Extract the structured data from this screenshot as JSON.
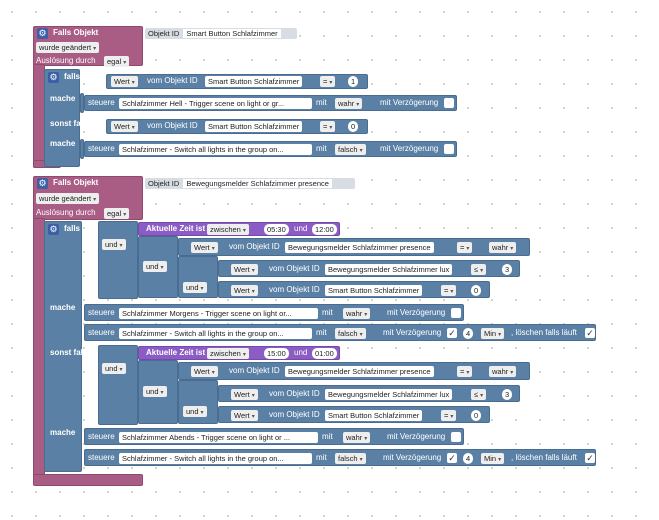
{
  "script1": {
    "trigger_label": "Falls Objekt",
    "object_id_prefix": "Objekt ID",
    "object_id": "Smart Button Schlafzimmer",
    "changed_mode": "wurde geändert",
    "trigger_by_label": "Auslösung durch",
    "trigger_by_value": "egal",
    "if_label": "falls",
    "do_label": "mache",
    "else_label": "sonst falls",
    "else_do_label": "mache",
    "cond1": {
      "field": "Wert",
      "from": "vom Objekt ID",
      "object": "Smart Button Schlafzimmer",
      "op": "=",
      "value": "1"
    },
    "action1": {
      "verb": "steuere",
      "target": "Schlafzimmer Hell - Trigger scene on light or gr...",
      "with": "mit",
      "val": "wahr",
      "delay": "mit Verzögerung"
    },
    "cond2": {
      "field": "Wert",
      "from": "vom Objekt ID",
      "object": "Smart Button Schlafzimmer",
      "op": "=",
      "value": "0"
    },
    "action2": {
      "verb": "steuere",
      "target": "Schlafzimmer - Switch all lights in the group on...",
      "with": "mit",
      "val": "falsch",
      "delay": "mit Verzögerung"
    }
  },
  "script2": {
    "trigger_label": "Falls Objekt",
    "object_id_prefix": "Objekt ID",
    "object_id": "Bewegungsmelder Schlafzimmer presence",
    "changed_mode": "wurde geändert",
    "trigger_by_label": "Auslösung durch",
    "trigger_by_value": "egal",
    "if_label": "falls",
    "and_label": "und",
    "time1": {
      "label": "Aktuelle Zeit ist",
      "mode": "zwischen",
      "from": "05:30",
      "and": "und",
      "to": "12:00"
    },
    "c_presence": {
      "field": "Wert",
      "from": "vom Objekt ID",
      "object": "Bewegungsmelder Schlafzimmer presence",
      "op": "=",
      "value": "wahr"
    },
    "c_lux": {
      "field": "Wert",
      "from": "vom Objekt ID",
      "object": "Bewegungsmelder Schlafzimmer lux",
      "op": "≤",
      "value": "3"
    },
    "c_button": {
      "field": "Wert",
      "from": "vom Objekt ID",
      "object": "Smart Button Schlafzimmer",
      "op": "=",
      "value": "0"
    },
    "do_label": "mache",
    "m_action1": {
      "verb": "steuere",
      "target": "Schlafzimmer Morgens - Trigger scene on light or...",
      "with": "mit",
      "val": "wahr",
      "delay": "mit Verzögerung"
    },
    "m_action2": {
      "verb": "steuere",
      "target": "Schlafzimmer - Switch all lights in the group on...",
      "with": "mit",
      "val": "falsch",
      "delay": "mit Verzögerung",
      "dur": "4",
      "unit": "Min",
      "clear": ", löschen falls läuft"
    },
    "else_label": "sonst falls",
    "time2": {
      "label": "Aktuelle Zeit ist",
      "mode": "zwischen",
      "from": "15:00",
      "and": "und",
      "to": "01:00"
    },
    "else_do_label": "mache",
    "e_action1": {
      "verb": "steuere",
      "target": "Schlafzimmer Abends - Trigger scene on light or ...",
      "with": "mit",
      "val": "wahr",
      "delay": "mit Verzögerung"
    },
    "e_action2": {
      "verb": "steuere",
      "target": "Schlafzimmer - Switch all lights in the group on...",
      "with": "mit",
      "val": "falsch",
      "delay": "mit Verzögerung",
      "dur": "4",
      "unit": "Min",
      "clear": ", löschen falls läuft"
    }
  },
  "icons": {
    "gear": "gear-icon",
    "dropdown": "dropdown-arrow-icon",
    "checkbox": "checkbox-icon"
  },
  "colors": {
    "trigger": "#a95c84",
    "logic": "#5b80a5",
    "time": "#8a5cc4"
  }
}
